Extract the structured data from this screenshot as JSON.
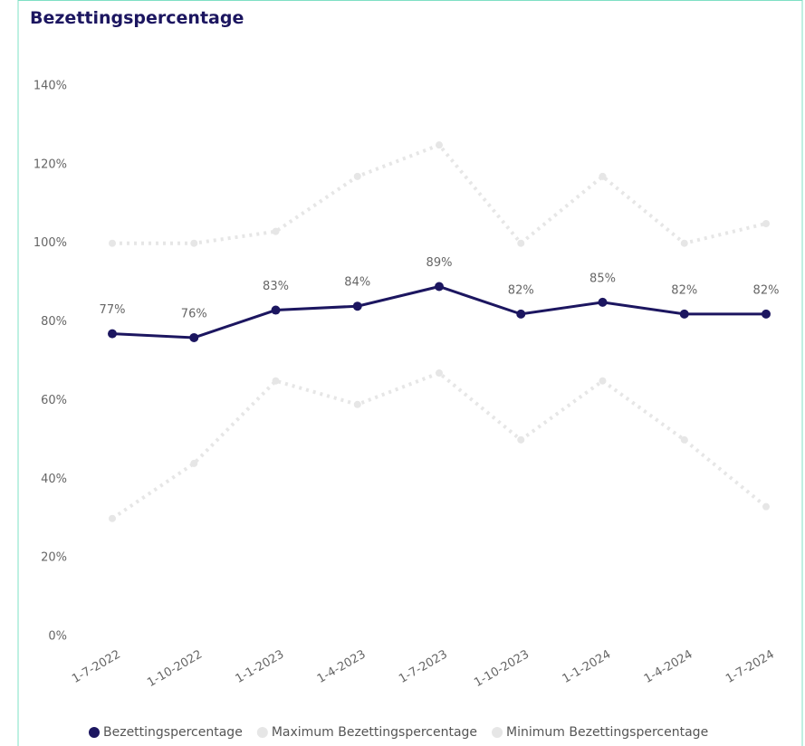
{
  "chart_data": {
    "type": "line",
    "title": "Bezettingspercentage",
    "categories": [
      "1-7-2022",
      "1-10-2022",
      "1-1-2023",
      "1-4-2023",
      "1-7-2023",
      "1-10-2023",
      "1-1-2024",
      "1-4-2024",
      "1-7-2024"
    ],
    "series": [
      {
        "name": "Bezettingspercentage",
        "color": "#1c1660",
        "values": [
          77,
          76,
          83,
          84,
          89,
          82,
          85,
          82,
          82
        ],
        "value_labels": [
          "77%",
          "76%",
          "83%",
          "84%",
          "89%",
          "82%",
          "85%",
          "82%",
          "82%"
        ]
      },
      {
        "name": "Maximum Bezettingspercentage",
        "color": "#e6e6e6",
        "values": [
          100,
          100,
          103,
          117,
          125,
          100,
          117,
          100,
          105
        ]
      },
      {
        "name": "Minimum Bezettingspercentage",
        "color": "#e6e6e6",
        "values": [
          30,
          44,
          65,
          59,
          67,
          50,
          65,
          50,
          33
        ]
      }
    ],
    "ylim": [
      0,
      140
    ],
    "yticks": [
      {
        "value": 0,
        "label": "0%"
      },
      {
        "value": 20,
        "label": "20%"
      },
      {
        "value": 40,
        "label": "40%"
      },
      {
        "value": 60,
        "label": "60%"
      },
      {
        "value": 80,
        "label": "80%"
      },
      {
        "value": 100,
        "label": "100%"
      },
      {
        "value": 120,
        "label": "120%"
      },
      {
        "value": 140,
        "label": "140%"
      }
    ],
    "grid": false,
    "legend": "bottom"
  }
}
